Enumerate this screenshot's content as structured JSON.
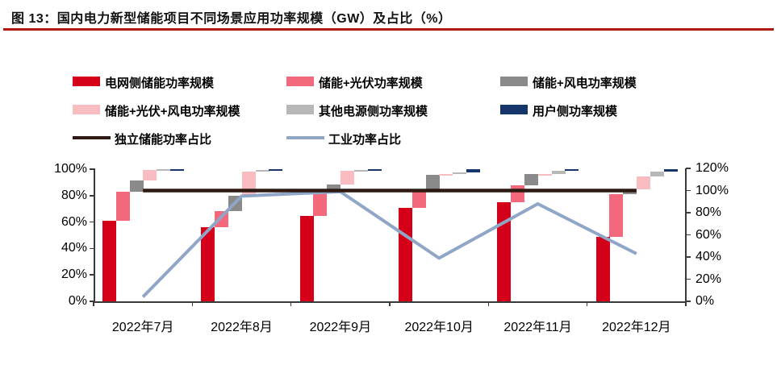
{
  "figure": {
    "title": "图 13：国内电力新型储能项目不同场景应用功率规模（GW）及占比（%）",
    "underline_color": "#B01812"
  },
  "legend": {
    "items": [
      {
        "label": "电网侧储能功率规模",
        "color": "#D40019",
        "type": "bar"
      },
      {
        "label": "储能+光伏功率规模",
        "color": "#F4687C",
        "type": "bar"
      },
      {
        "label": "储能+风电功率规模",
        "color": "#8A8A8A",
        "type": "bar"
      },
      {
        "label": "储能+光伏+风电功率规模",
        "color": "#F9BDC1",
        "type": "bar"
      },
      {
        "label": "其他电源侧功率规模",
        "color": "#B8B8B8",
        "type": "bar"
      },
      {
        "label": "用户侧功率规模",
        "color": "#15366B",
        "type": "bar"
      },
      {
        "label": "独立储能功率占比",
        "color": "#2E1A12",
        "type": "line"
      },
      {
        "label": "工业功率占比",
        "color": "#8FA6C6",
        "type": "line"
      }
    ]
  },
  "chart_data": {
    "type": "bar",
    "subtype": "waterfall-stacked-bars-with-lines",
    "categories": [
      "2022年7月",
      "2022年8月",
      "2022年9月",
      "2022年10月",
      "2022年11月",
      "2022年12月"
    ],
    "bar_axis": "left",
    "bar_series": [
      {
        "name": "电网侧储能功率规模",
        "color": "#D40019",
        "values": [
          61,
          56,
          64.5,
          71,
          75,
          49
        ]
      },
      {
        "name": "储能+光伏功率规模",
        "color": "#F4687C",
        "values": [
          22,
          12.5,
          17,
          12,
          13,
          32
        ]
      },
      {
        "name": "储能+风电功率规模",
        "color": "#8A8A8A",
        "values": [
          8.5,
          11.5,
          7,
          12.5,
          8.2,
          3.5
        ]
      },
      {
        "name": "储能+光伏+风电功率规模",
        "color": "#F9BDC1",
        "values": [
          8,
          18,
          10,
          0.8,
          0.3,
          10
        ]
      },
      {
        "name": "其他电源侧功率规模",
        "color": "#B8B8B8",
        "values": [
          0.3,
          1.5,
          1,
          1.2,
          2,
          3.5
        ]
      },
      {
        "name": "用户侧功率规模",
        "color": "#15366B",
        "values": [
          0.2,
          0.5,
          0.5,
          2.5,
          1.5,
          2
        ]
      }
    ],
    "line_series": [
      {
        "name": "独立储能功率占比",
        "color": "#2E1A12",
        "axis": "right",
        "width": 4.5,
        "values": [
          100,
          100,
          100,
          100,
          100,
          100
        ]
      },
      {
        "name": "工业功率占比",
        "color": "#8FA6C6",
        "axis": "right",
        "width": 4,
        "values": [
          4,
          95,
          99,
          39,
          88,
          43
        ]
      }
    ],
    "left_axis": {
      "min": 0,
      "max": 100,
      "tick_labels": [
        "0%",
        "20%",
        "40%",
        "60%",
        "80%",
        "100%"
      ]
    },
    "right_axis": {
      "min": 0,
      "max": 120,
      "tick_labels": [
        "0%",
        "20%",
        "40%",
        "60%",
        "80%",
        "100%",
        "120%"
      ]
    },
    "grid": false,
    "legend_position": "top"
  }
}
